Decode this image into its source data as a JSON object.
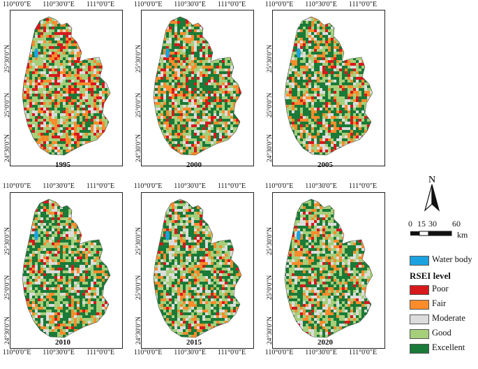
{
  "panels": [
    {
      "year": "1995",
      "lon_labels": [
        "110°0'0\"E",
        "110°30'0\"E",
        "111°0'0\"E"
      ],
      "lat_labels": [
        "25°30'0\"N",
        "25°0'0\"N",
        "24°30'0\"N"
      ],
      "labels_bottom": false
    },
    {
      "year": "2000",
      "lon_labels": [
        "110°0'0\"E",
        "110°30'0\"E",
        "111°0'0\"E"
      ],
      "lat_labels": [
        "25°30'0\"N",
        "25°0'0\"N",
        "24°30'0\"N"
      ],
      "labels_bottom": false
    },
    {
      "year": "2005",
      "lon_labels": [
        "110°0'0\"E",
        "110°30'0\"E",
        "111°0'0\"E"
      ],
      "lat_labels": [
        "25°30'0\"N",
        "25°0'0\"N",
        "24°30'0\"N"
      ],
      "labels_bottom": false
    },
    {
      "year": "2010",
      "lon_labels": [
        "110°0'0\"E",
        "110°30'0\"E",
        "111°0'0\"E"
      ],
      "lat_labels": [
        "25°30'0\"N",
        "25°0'0\"N",
        "24°30'0\"N"
      ],
      "labels_bottom": true
    },
    {
      "year": "2015",
      "lon_labels": [
        "110°0'0\"E",
        "110°30'0\"E",
        "111°0'0\"E"
      ],
      "lat_labels": [
        "25°30'0\"N",
        "25°0'0\"N",
        "24°30'0\"N"
      ],
      "labels_bottom": true
    },
    {
      "year": "2020",
      "lon_labels": [
        "110°0'0\"E",
        "110°30'0\"E",
        "111°0'0\"E"
      ],
      "lat_labels": [
        "25°30'0\"N",
        "25°0'0\"N",
        "24°30'0\"N"
      ],
      "labels_bottom": true
    }
  ],
  "north_arrow": {
    "label": "N",
    "icon": "north-arrow-icon"
  },
  "scale_bar": {
    "ticks": [
      "0",
      "15",
      "30",
      "60"
    ],
    "unit": "km"
  },
  "legend": {
    "water": {
      "label": "Water body",
      "color": "#1aa3e0"
    },
    "title": "RSEI level",
    "items": [
      {
        "label": "Poor",
        "color": "#d7191c"
      },
      {
        "label": "Fair",
        "color": "#fb8c2b"
      },
      {
        "label": "Moderate",
        "color": "#dcdcdc"
      },
      {
        "label": "Good",
        "color": "#a6cf7a"
      },
      {
        "label": "Excellent",
        "color": "#1a7a37"
      }
    ]
  }
}
